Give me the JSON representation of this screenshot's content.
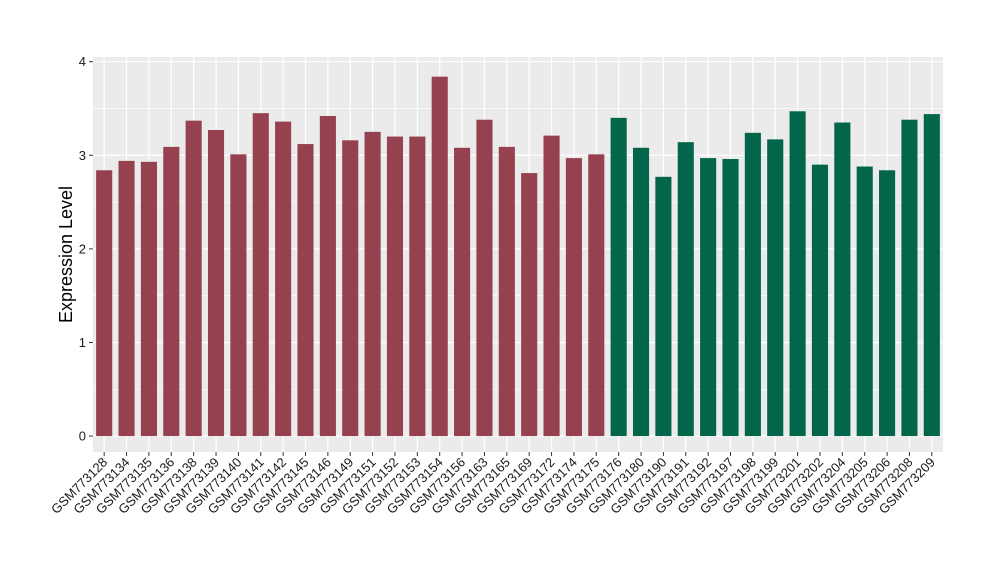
{
  "chart_data": {
    "type": "bar",
    "title": "",
    "xlabel": "",
    "ylabel": "Expression Level",
    "ylim": [
      -0.17,
      4.05
    ],
    "yticks": [
      0,
      1,
      2,
      3,
      4
    ],
    "grid": true,
    "legend": "none",
    "categories": [
      "GSM773128",
      "GSM773134",
      "GSM773135",
      "GSM773136",
      "GSM773138",
      "GSM773139",
      "GSM773140",
      "GSM773141",
      "GSM773142",
      "GSM773145",
      "GSM773146",
      "GSM773149",
      "GSM773151",
      "GSM773152",
      "GSM773153",
      "GSM773154",
      "GSM773156",
      "GSM773163",
      "GSM773165",
      "GSM773169",
      "GSM773172",
      "GSM773174",
      "GSM773175",
      "GSM773176",
      "GSM773180",
      "GSM773190",
      "GSM773191",
      "GSM773192",
      "GSM773197",
      "GSM773198",
      "GSM773199",
      "GSM773201",
      "GSM773202",
      "GSM773204",
      "GSM773205",
      "GSM773206",
      "GSM773208",
      "GSM773209"
    ],
    "values": [
      2.84,
      2.94,
      2.93,
      3.09,
      3.37,
      3.27,
      3.01,
      3.45,
      3.36,
      3.12,
      3.42,
      3.16,
      3.25,
      3.2,
      3.2,
      3.84,
      3.08,
      3.38,
      3.09,
      2.81,
      3.21,
      2.97,
      3.01,
      3.4,
      3.08,
      2.77,
      3.14,
      2.97,
      2.96,
      3.24,
      3.17,
      3.47,
      2.9,
      3.35,
      2.88,
      2.84,
      3.38,
      3.44
    ],
    "groups": [
      0,
      0,
      0,
      0,
      0,
      0,
      0,
      0,
      0,
      0,
      0,
      0,
      0,
      0,
      0,
      0,
      0,
      0,
      0,
      0,
      0,
      0,
      0,
      1,
      1,
      1,
      1,
      1,
      1,
      1,
      1,
      1,
      1,
      1,
      1,
      1,
      1,
      1
    ],
    "colors": [
      "#96414F",
      "#03664A"
    ],
    "panel_background": "#EBEBEB",
    "grid_color": "#FFFFFF"
  }
}
